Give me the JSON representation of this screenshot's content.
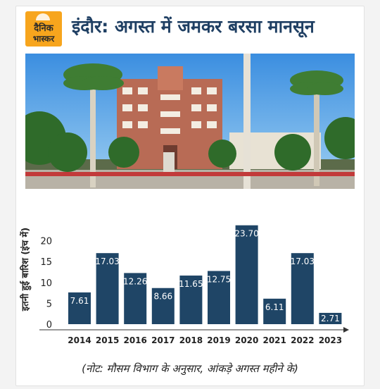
{
  "brand": {
    "line1": "दैनिक",
    "line2": "भास्कर"
  },
  "headline": "इंदौर: अगस्त में जमकर बरसा मानसून",
  "note": "(नोट: मौसम विभाग के अनुसार, आंकड़े अगस्त महीने के)",
  "colors": {
    "bar": "#1f4566",
    "headline": "#1f3f63",
    "logo": "#f7a51d"
  },
  "chart_data": {
    "type": "bar",
    "categories": [
      "2014",
      "2015",
      "2016",
      "2017",
      "2018",
      "2019",
      "2020",
      "2021",
      "2022",
      "2023"
    ],
    "values": [
      7.61,
      17.03,
      12.26,
      8.66,
      11.65,
      12.75,
      23.7,
      6.11,
      17.03,
      2.71
    ],
    "data_labels": [
      "7.61",
      "17.03",
      "12.26",
      "8.66",
      "11.65",
      "12.75",
      "23.70",
      "6.11",
      "17.03",
      "2.71"
    ],
    "ylabel": "इतनी हुई बारिश (इंच में)",
    "yticks": [
      0,
      5,
      10,
      15,
      20
    ],
    "ylim": [
      0,
      25
    ],
    "grid": false
  }
}
